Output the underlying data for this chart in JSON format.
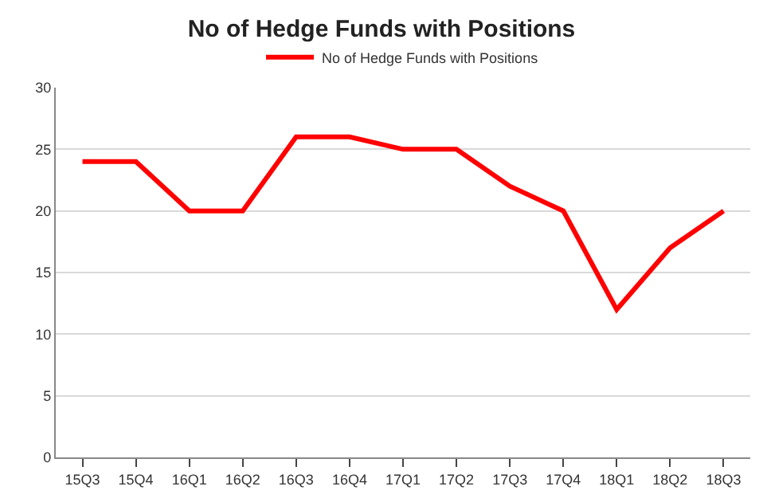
{
  "chart_data": {
    "type": "line",
    "title": "No of Hedge Funds with Positions",
    "categories": [
      "15Q3",
      "15Q4",
      "16Q1",
      "16Q2",
      "16Q3",
      "16Q4",
      "17Q1",
      "17Q2",
      "17Q3",
      "17Q4",
      "18Q1",
      "18Q2",
      "18Q3"
    ],
    "series": [
      {
        "name": "No of Hedge Funds with Positions",
        "color": "#ff0000",
        "values": [
          24,
          24,
          20,
          20,
          26,
          26,
          25,
          25,
          22,
          20,
          12,
          17,
          20
        ]
      }
    ],
    "ylim": [
      0,
      30
    ],
    "yticks": [
      0,
      5,
      10,
      15,
      20,
      25,
      30
    ],
    "grid": "y",
    "legend": "top",
    "marker": "none",
    "line_style": "solid"
  }
}
